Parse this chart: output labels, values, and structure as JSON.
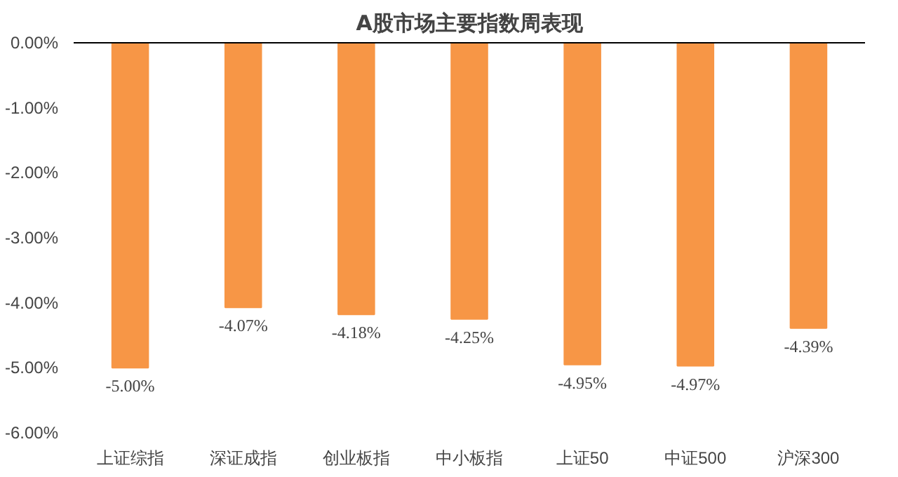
{
  "chart_data": {
    "type": "bar",
    "title": "A股市场主要指数周表现",
    "categories": [
      "上证综指",
      "深证成指",
      "创业板指",
      "中小板指",
      "上证50",
      "中证500",
      "沪深300"
    ],
    "values": [
      -5.0,
      -4.07,
      -4.18,
      -4.25,
      -4.95,
      -4.97,
      -4.39
    ],
    "value_labels": [
      "-5.00%",
      "-4.07%",
      "-4.18%",
      "-4.25%",
      "-4.95%",
      "-4.97%",
      "-4.39%"
    ],
    "color": "#f79646",
    "ylim": [
      -6,
      0
    ],
    "yticks": [
      {
        "value": 0,
        "label": "0.00%"
      },
      {
        "value": -1,
        "label": "-1.00%"
      },
      {
        "value": -2,
        "label": "-2.00%"
      },
      {
        "value": -3,
        "label": "-3.00%"
      },
      {
        "value": -4,
        "label": "-4.00%"
      },
      {
        "value": -5,
        "label": "-5.00%"
      },
      {
        "value": -6,
        "label": "-6.00%"
      }
    ],
    "grid": false
  }
}
